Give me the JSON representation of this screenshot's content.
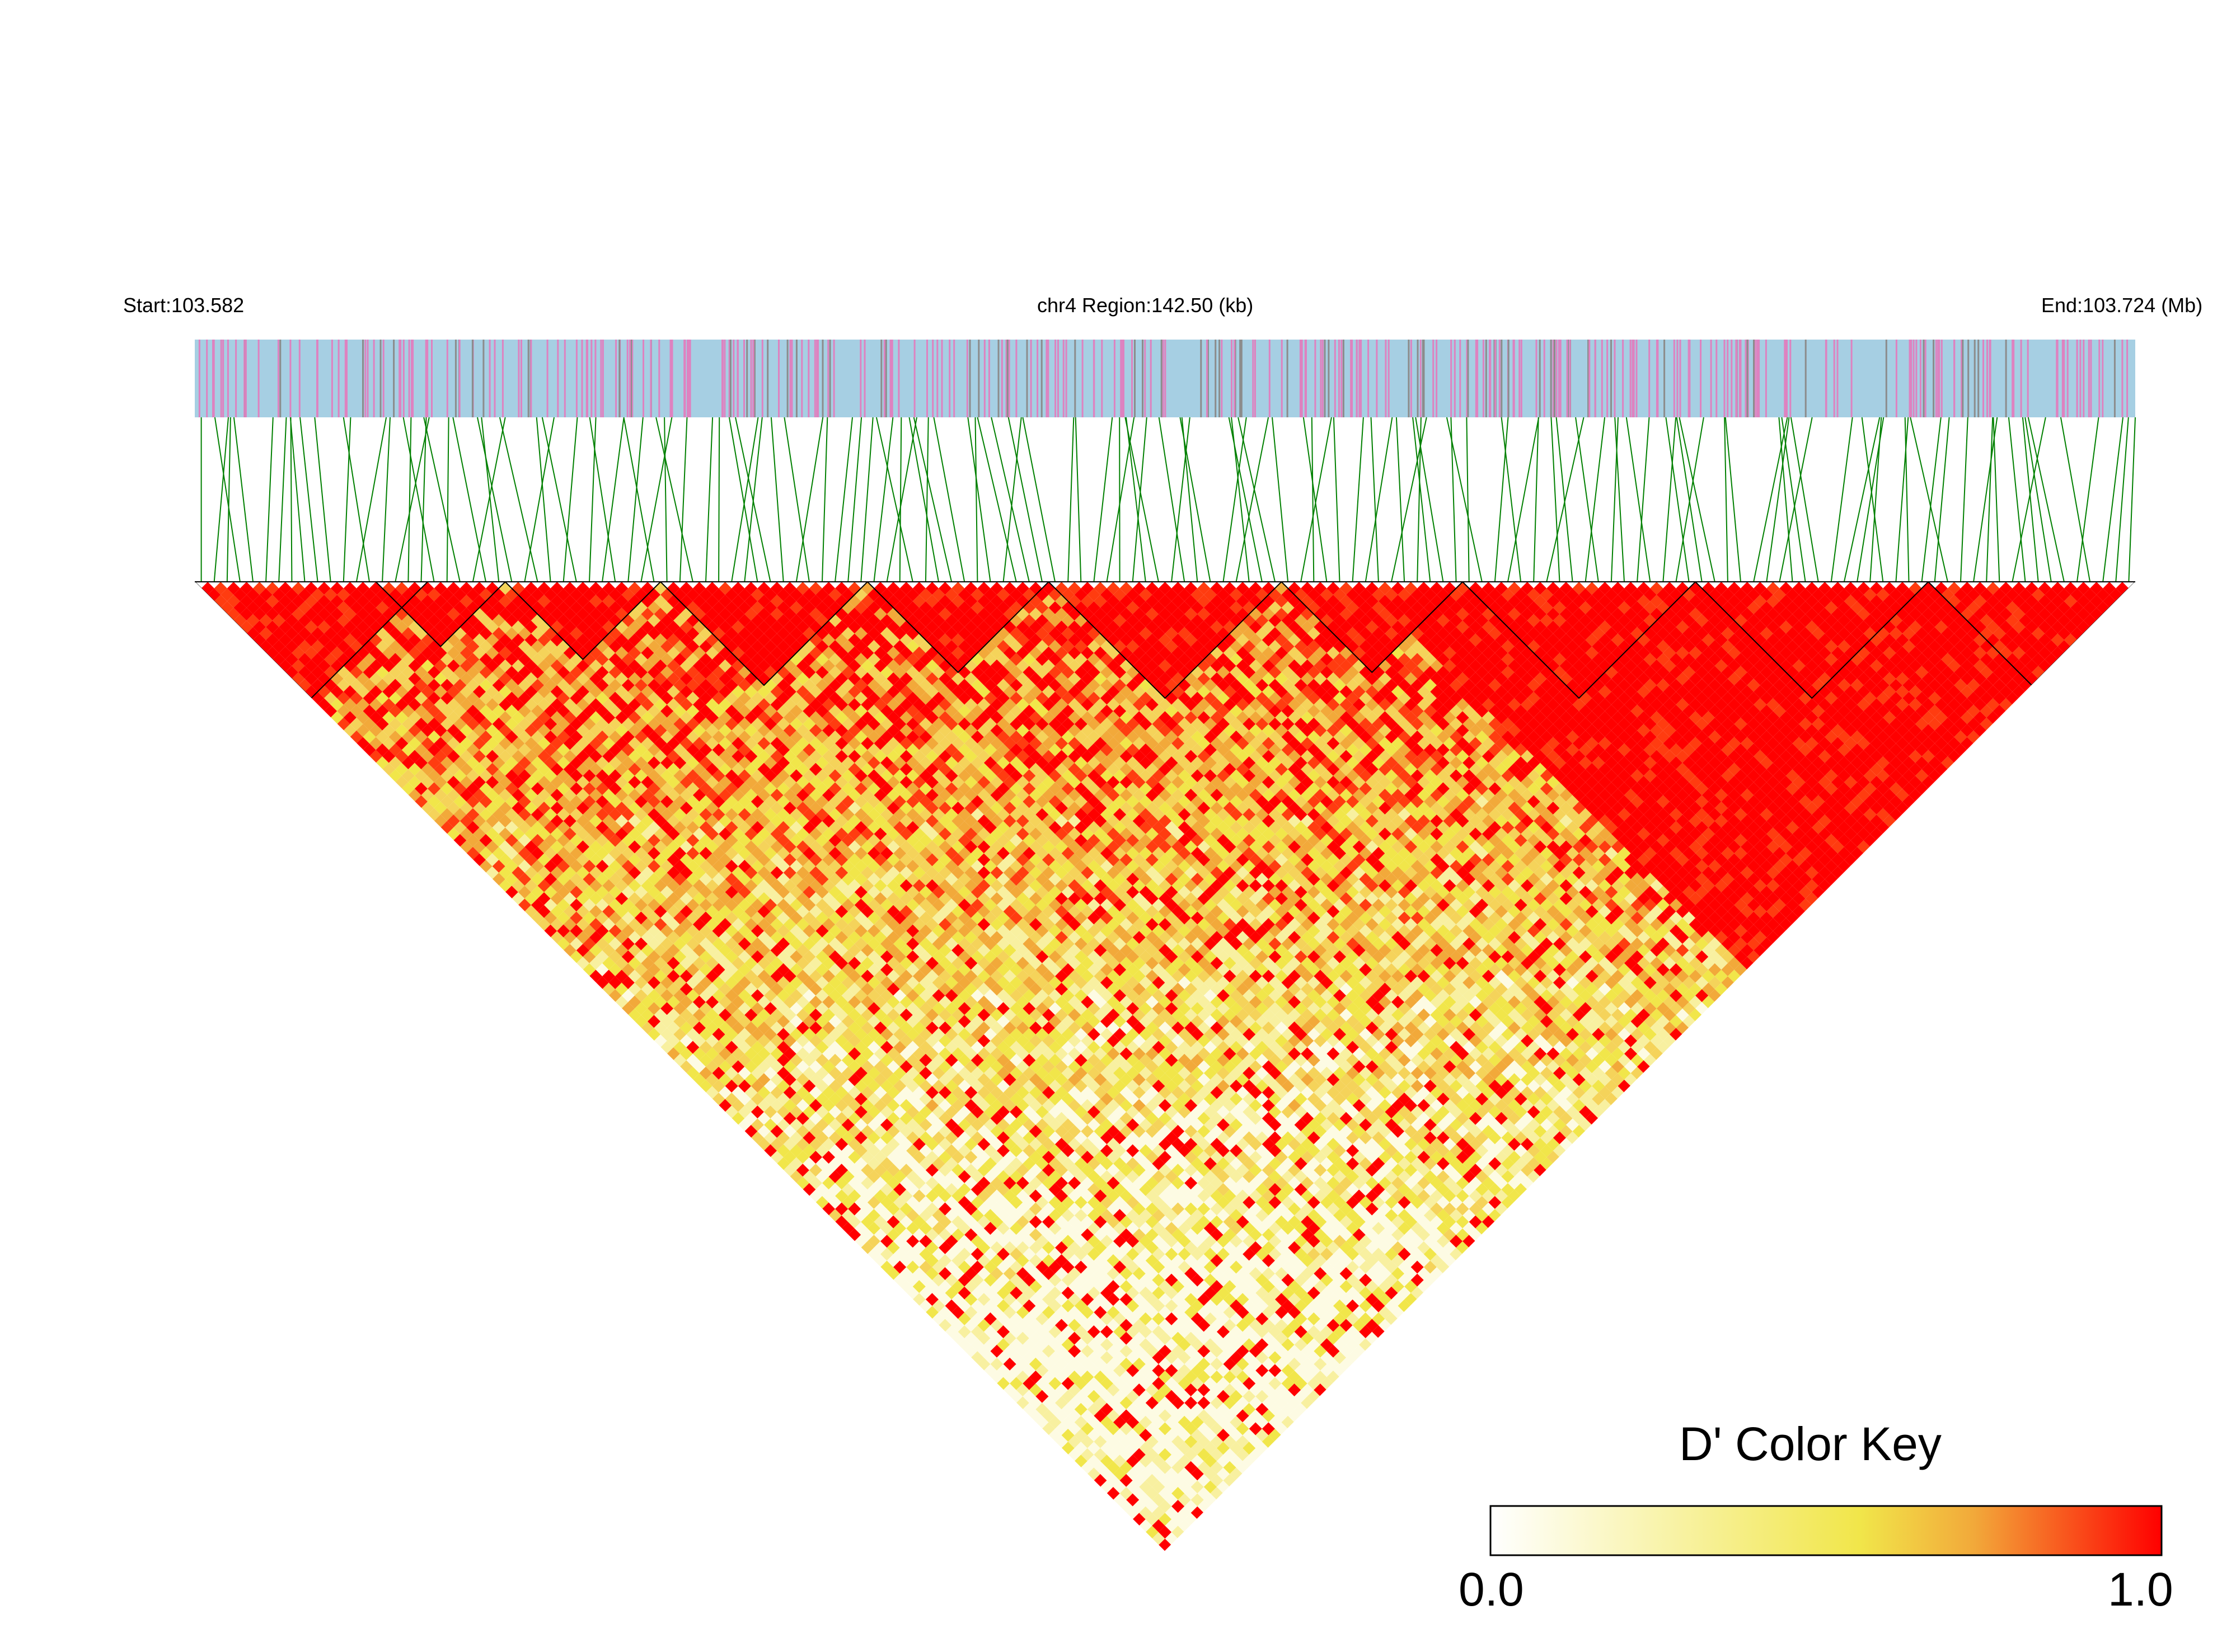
{
  "header": {
    "start_label": "Start:103.582",
    "region_label": "chr4 Region:142.50 (kb)",
    "end_label": "End:103.724 (Mb)"
  },
  "chart_data": {
    "type": "heatmap",
    "subtype": "linkage-disequilibrium-triangle",
    "metric": "D'",
    "chromosome": "chr4",
    "region_start_mb": 103.582,
    "region_end_mb": 103.724,
    "region_length_kb": 142.5,
    "approx_snp_count": 300,
    "value_range": [
      0.0,
      1.0
    ],
    "track_colors": {
      "background": "#a6cfe3",
      "marker_a": "#de82c0",
      "marker_b": "#8c8c8c",
      "connector": "#008000"
    },
    "pattern_notes": "Strong LD (D' near 1.0) along the diagonal and in large blocks on the right half; weaker, yellowish LD in the lower-left interior.",
    "color_key": {
      "title": "D' Color Key",
      "min_label": "0.0",
      "max_label": "1.0",
      "colors": [
        "#ffffff",
        "#f1e64a",
        "#f2a93a",
        "#ff0000"
      ]
    }
  }
}
